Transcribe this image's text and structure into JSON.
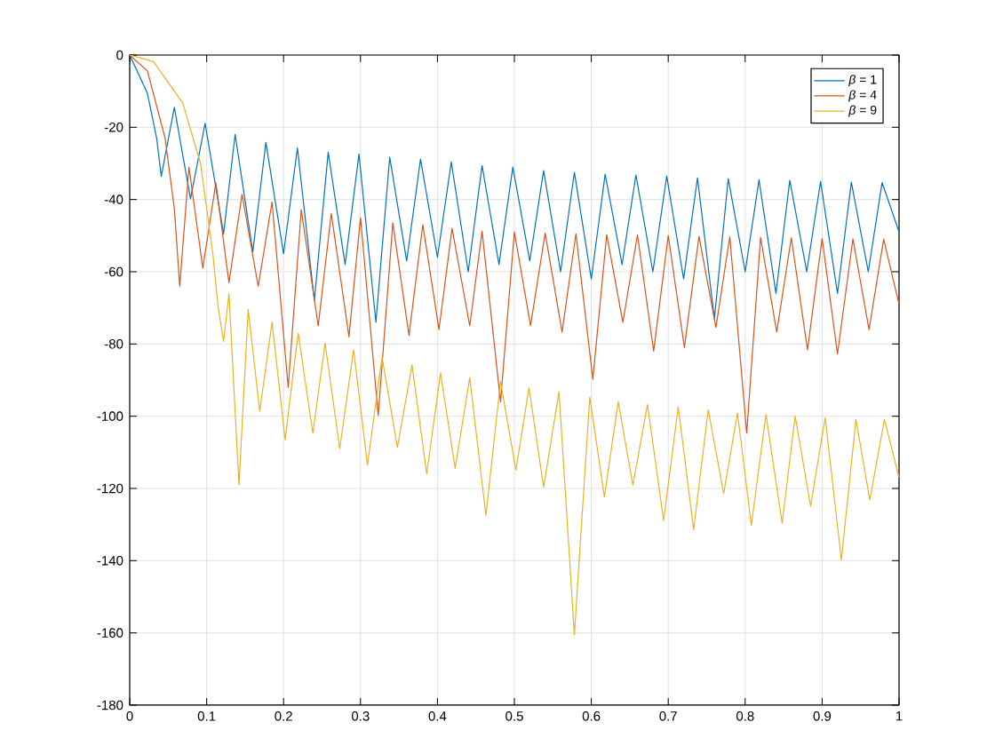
{
  "chart_data": {
    "type": "line",
    "xlim": [
      0,
      1
    ],
    "ylim": [
      -180,
      0
    ],
    "xticks": [
      0,
      0.1,
      0.2,
      0.3,
      0.4,
      0.5,
      0.6,
      0.7,
      0.8,
      0.9,
      1
    ],
    "yticks": [
      -180,
      -160,
      -140,
      -120,
      -100,
      -80,
      -60,
      -40,
      -20,
      0
    ],
    "grid": true,
    "legend": "top right",
    "line_style": "solid",
    "marker": "none",
    "series": [
      {
        "name": "*β* = 1",
        "color": "#0072bd",
        "x": [
          0,
          0.023,
          0.035,
          0.041,
          0.058,
          0.079,
          0.098,
          0.122,
          0.137,
          0.16,
          0.177,
          0.2,
          0.218,
          0.24,
          0.258,
          0.28,
          0.298,
          0.32,
          0.338,
          0.36,
          0.378,
          0.4,
          0.418,
          0.44,
          0.458,
          0.48,
          0.498,
          0.52,
          0.538,
          0.56,
          0.578,
          0.6,
          0.618,
          0.64,
          0.658,
          0.68,
          0.698,
          0.72,
          0.738,
          0.76,
          0.778,
          0.8,
          0.818,
          0.84,
          0.858,
          0.88,
          0.898,
          0.92,
          0.938,
          0.96,
          0.978,
          1
        ],
        "values": [
          0,
          -10.6,
          -23,
          -33.6,
          -14.5,
          -39.8,
          -18.9,
          -49.5,
          -22,
          -54.5,
          -24.2,
          -55,
          -25.7,
          -68,
          -26.9,
          -58,
          -27.4,
          -74,
          -28.3,
          -57,
          -28.8,
          -56,
          -29.6,
          -60,
          -30.6,
          -58,
          -31,
          -57,
          -32,
          -60,
          -32.5,
          -62,
          -33,
          -58,
          -33.2,
          -60,
          -33.5,
          -62,
          -34,
          -73,
          -34.2,
          -60,
          -34.5,
          -66,
          -34.7,
          -60,
          -35,
          -66,
          -35.2,
          -60,
          -35.3,
          -49
        ]
      },
      {
        "name": "*β* = 4",
        "color": "#d95319",
        "x": [
          0,
          0.023,
          0.046,
          0.058,
          0.065,
          0.077,
          0.095,
          0.112,
          0.129,
          0.146,
          0.167,
          0.185,
          0.206,
          0.223,
          0.245,
          0.262,
          0.285,
          0.3,
          0.323,
          0.342,
          0.363,
          0.381,
          0.402,
          0.419,
          0.442,
          0.458,
          0.482,
          0.5,
          0.521,
          0.54,
          0.562,
          0.58,
          0.602,
          0.62,
          0.641,
          0.66,
          0.681,
          0.7,
          0.721,
          0.74,
          0.762,
          0.78,
          0.802,
          0.82,
          0.841,
          0.86,
          0.881,
          0.9,
          0.92,
          0.94,
          0.961,
          0.98,
          1
        ],
        "values": [
          0,
          -4.4,
          -23,
          -42.5,
          -64,
          -31,
          -59,
          -35.4,
          -63,
          -38.6,
          -64,
          -40.7,
          -92,
          -42.8,
          -75,
          -43.9,
          -78,
          -45,
          -99.8,
          -46.5,
          -77.6,
          -47,
          -76,
          -48,
          -75,
          -48.8,
          -96,
          -49,
          -74.9,
          -49.3,
          -76.7,
          -49.5,
          -89.8,
          -49.7,
          -74,
          -49.8,
          -82,
          -50,
          -81,
          -50.2,
          -75.4,
          -50.3,
          -104.7,
          -50.5,
          -76.7,
          -50.6,
          -81.6,
          -50.8,
          -82.8,
          -50.9,
          -76,
          -51,
          -69
        ]
      },
      {
        "name": "*β* = 9",
        "color": "#edb120",
        "x": [
          0,
          0.031,
          0.069,
          0.092,
          0.108,
          0.115,
          0.122,
          0.129,
          0.142,
          0.154,
          0.169,
          0.185,
          0.202,
          0.219,
          0.238,
          0.254,
          0.273,
          0.291,
          0.309,
          0.328,
          0.348,
          0.367,
          0.386,
          0.404,
          0.423,
          0.442,
          0.463,
          0.482,
          0.502,
          0.519,
          0.538,
          0.558,
          0.578,
          0.598,
          0.617,
          0.635,
          0.654,
          0.673,
          0.694,
          0.713,
          0.733,
          0.752,
          0.772,
          0.79,
          0.808,
          0.827,
          0.848,
          0.865,
          0.885,
          0.904,
          0.925,
          0.944,
          0.962,
          0.981,
          1
        ],
        "values": [
          0,
          -1.8,
          -13.3,
          -30,
          -54.9,
          -70,
          -79.3,
          -66.1,
          -119,
          -70.5,
          -98.6,
          -74,
          -106.5,
          -77,
          -104.7,
          -79.8,
          -109,
          -81.6,
          -113.5,
          -83.7,
          -108.6,
          -85.8,
          -116,
          -88,
          -114.4,
          -89.3,
          -127.5,
          -90.4,
          -114.9,
          -92.1,
          -119.6,
          -93.3,
          -160.5,
          -94.7,
          -122.3,
          -96,
          -119.1,
          -96.8,
          -128.9,
          -97.4,
          -131.4,
          -98.2,
          -121.4,
          -99.1,
          -130.2,
          -99.5,
          -129.6,
          -100,
          -124.9,
          -100.4,
          -139.8,
          -100.9,
          -123.2,
          -100.9,
          -117
        ]
      }
    ]
  }
}
